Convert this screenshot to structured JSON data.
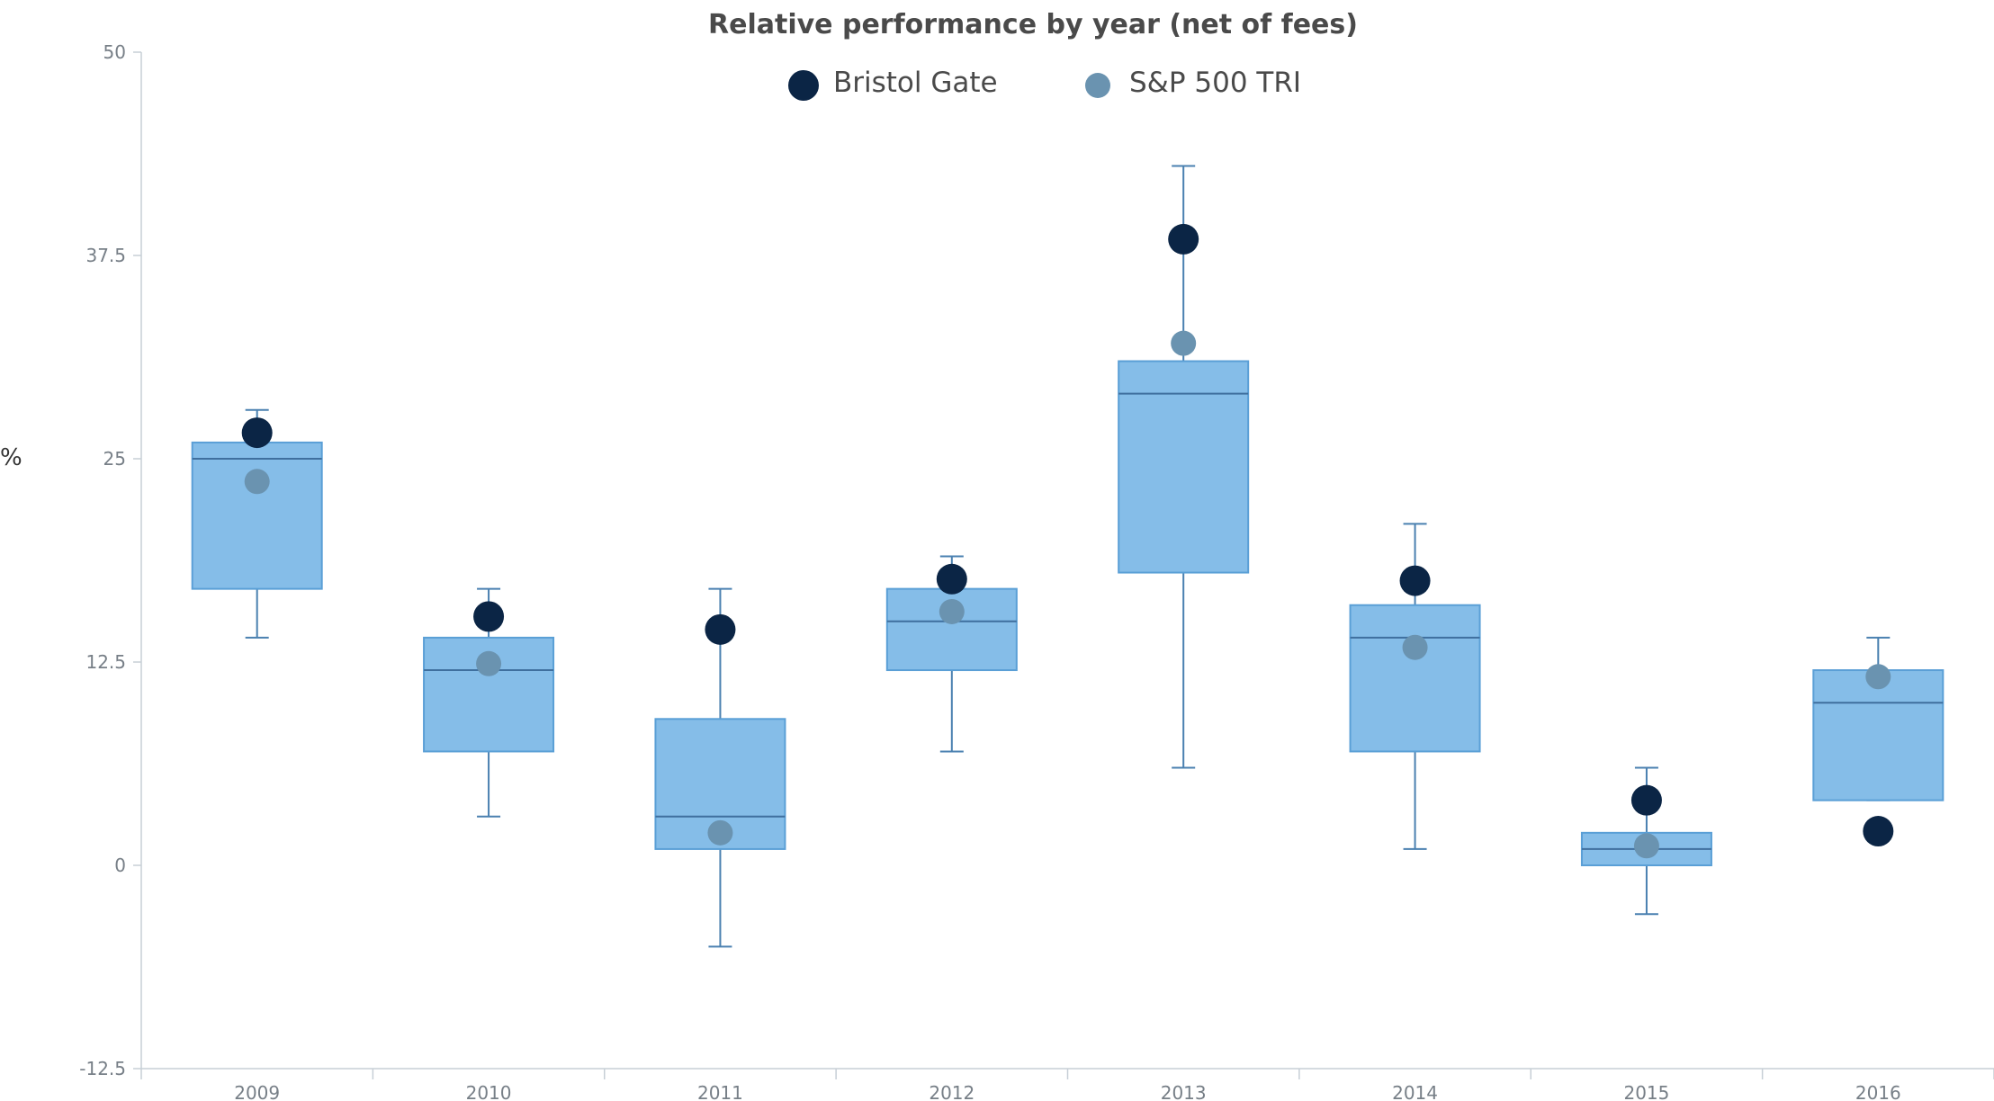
{
  "chart_data": {
    "type": "box",
    "title": "Relative performance by year (net of fees)",
    "ylabel": "%",
    "xlabel": "",
    "ylim": [
      -12.5,
      50
    ],
    "yticks": [
      "50",
      "37.5",
      "25",
      "12.5",
      "0",
      "-12.5"
    ],
    "ytick_values": [
      50,
      37.5,
      25,
      12.5,
      0,
      -12.5
    ],
    "grid": false,
    "legend_position": "top-center",
    "categories": [
      "2009",
      "2010",
      "2011",
      "2012",
      "2013",
      "2014",
      "2015",
      "2016"
    ],
    "boxes": [
      {
        "category": "2009",
        "min": 14,
        "q1": 17,
        "median": 25,
        "q3": 26,
        "max": 28
      },
      {
        "category": "2010",
        "min": 3,
        "q1": 7,
        "median": 12,
        "q3": 14,
        "max": 17
      },
      {
        "category": "2011",
        "min": -5,
        "q1": 1,
        "median": 3,
        "q3": 9,
        "max": 17
      },
      {
        "category": "2012",
        "min": 7,
        "q1": 12,
        "median": 15,
        "q3": 17,
        "max": 19
      },
      {
        "category": "2013",
        "min": 6,
        "q1": 18,
        "median": 29,
        "q3": 31,
        "max": 43
      },
      {
        "category": "2014",
        "min": 1,
        "q1": 7,
        "median": 14,
        "q3": 16,
        "max": 21
      },
      {
        "category": "2015",
        "min": -3,
        "q1": 0,
        "median": 1,
        "q3": 2,
        "max": 6
      },
      {
        "category": "2016",
        "min": 4,
        "q1": 4,
        "median": 10,
        "q3": 12,
        "max": 14
      }
    ],
    "series": [
      {
        "name": "Bristol Gate",
        "color": "#0b2545",
        "values": [
          26.6,
          15.3,
          14.5,
          17.6,
          38.5,
          17.5,
          4.0,
          2.1
        ]
      },
      {
        "name": "S&P 500 TRI",
        "color": "#6a93b0",
        "values": [
          23.6,
          12.4,
          2.0,
          15.6,
          32.1,
          13.4,
          1.2,
          11.6
        ]
      }
    ],
    "colors": {
      "box_fill": "#85bde8",
      "box_stroke": "#5a9fd6",
      "whisker": "#4a80b0",
      "median": "#3f6f9e",
      "axis": "#c7cfd6",
      "tick_text": "#777f87"
    }
  }
}
